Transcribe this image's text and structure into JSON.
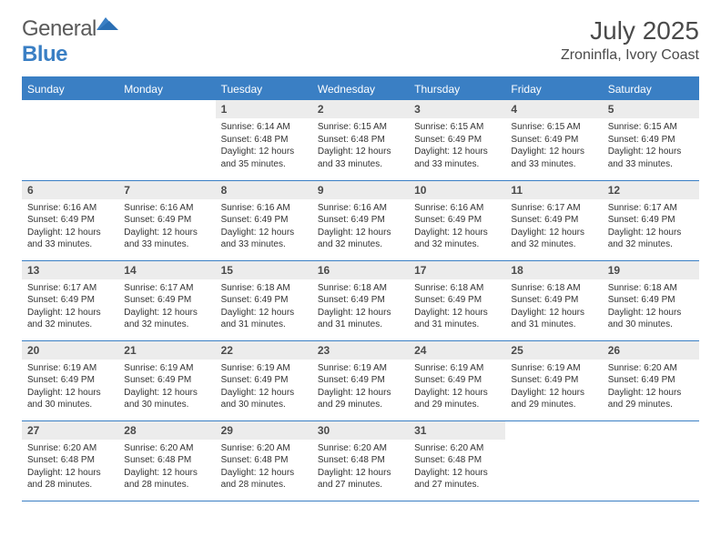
{
  "colors": {
    "accent": "#3a7fc4",
    "header_text": "#ffffff",
    "daynum_bg": "#ececec",
    "text": "#333333",
    "title_text": "#4a4a4a",
    "border": "#3a7fc4",
    "background": "#ffffff"
  },
  "typography": {
    "month_title_fontsize_pt": 21,
    "location_fontsize_pt": 12,
    "weekday_fontsize_pt": 9,
    "daynum_fontsize_pt": 9,
    "celltext_fontsize_pt": 7.5,
    "font_family": "Arial"
  },
  "logo": {
    "text_general": "General",
    "text_blue": "Blue"
  },
  "title": "July 2025",
  "location": "Zroninfla, Ivory Coast",
  "weekdays": [
    "Sunday",
    "Monday",
    "Tuesday",
    "Wednesday",
    "Thursday",
    "Friday",
    "Saturday"
  ],
  "layout": {
    "columns": 7,
    "rows": 5,
    "first_weekday_index": 2,
    "days_in_month": 31
  },
  "days": [
    {
      "n": "1",
      "sr": "6:14 AM",
      "ss": "6:48 PM",
      "dl": "12 hours and 35 minutes."
    },
    {
      "n": "2",
      "sr": "6:15 AM",
      "ss": "6:48 PM",
      "dl": "12 hours and 33 minutes."
    },
    {
      "n": "3",
      "sr": "6:15 AM",
      "ss": "6:49 PM",
      "dl": "12 hours and 33 minutes."
    },
    {
      "n": "4",
      "sr": "6:15 AM",
      "ss": "6:49 PM",
      "dl": "12 hours and 33 minutes."
    },
    {
      "n": "5",
      "sr": "6:15 AM",
      "ss": "6:49 PM",
      "dl": "12 hours and 33 minutes."
    },
    {
      "n": "6",
      "sr": "6:16 AM",
      "ss": "6:49 PM",
      "dl": "12 hours and 33 minutes."
    },
    {
      "n": "7",
      "sr": "6:16 AM",
      "ss": "6:49 PM",
      "dl": "12 hours and 33 minutes."
    },
    {
      "n": "8",
      "sr": "6:16 AM",
      "ss": "6:49 PM",
      "dl": "12 hours and 33 minutes."
    },
    {
      "n": "9",
      "sr": "6:16 AM",
      "ss": "6:49 PM",
      "dl": "12 hours and 32 minutes."
    },
    {
      "n": "10",
      "sr": "6:16 AM",
      "ss": "6:49 PM",
      "dl": "12 hours and 32 minutes."
    },
    {
      "n": "11",
      "sr": "6:17 AM",
      "ss": "6:49 PM",
      "dl": "12 hours and 32 minutes."
    },
    {
      "n": "12",
      "sr": "6:17 AM",
      "ss": "6:49 PM",
      "dl": "12 hours and 32 minutes."
    },
    {
      "n": "13",
      "sr": "6:17 AM",
      "ss": "6:49 PM",
      "dl": "12 hours and 32 minutes."
    },
    {
      "n": "14",
      "sr": "6:17 AM",
      "ss": "6:49 PM",
      "dl": "12 hours and 32 minutes."
    },
    {
      "n": "15",
      "sr": "6:18 AM",
      "ss": "6:49 PM",
      "dl": "12 hours and 31 minutes."
    },
    {
      "n": "16",
      "sr": "6:18 AM",
      "ss": "6:49 PM",
      "dl": "12 hours and 31 minutes."
    },
    {
      "n": "17",
      "sr": "6:18 AM",
      "ss": "6:49 PM",
      "dl": "12 hours and 31 minutes."
    },
    {
      "n": "18",
      "sr": "6:18 AM",
      "ss": "6:49 PM",
      "dl": "12 hours and 31 minutes."
    },
    {
      "n": "19",
      "sr": "6:18 AM",
      "ss": "6:49 PM",
      "dl": "12 hours and 30 minutes."
    },
    {
      "n": "20",
      "sr": "6:19 AM",
      "ss": "6:49 PM",
      "dl": "12 hours and 30 minutes."
    },
    {
      "n": "21",
      "sr": "6:19 AM",
      "ss": "6:49 PM",
      "dl": "12 hours and 30 minutes."
    },
    {
      "n": "22",
      "sr": "6:19 AM",
      "ss": "6:49 PM",
      "dl": "12 hours and 30 minutes."
    },
    {
      "n": "23",
      "sr": "6:19 AM",
      "ss": "6:49 PM",
      "dl": "12 hours and 29 minutes."
    },
    {
      "n": "24",
      "sr": "6:19 AM",
      "ss": "6:49 PM",
      "dl": "12 hours and 29 minutes."
    },
    {
      "n": "25",
      "sr": "6:19 AM",
      "ss": "6:49 PM",
      "dl": "12 hours and 29 minutes."
    },
    {
      "n": "26",
      "sr": "6:20 AM",
      "ss": "6:49 PM",
      "dl": "12 hours and 29 minutes."
    },
    {
      "n": "27",
      "sr": "6:20 AM",
      "ss": "6:48 PM",
      "dl": "12 hours and 28 minutes."
    },
    {
      "n": "28",
      "sr": "6:20 AM",
      "ss": "6:48 PM",
      "dl": "12 hours and 28 minutes."
    },
    {
      "n": "29",
      "sr": "6:20 AM",
      "ss": "6:48 PM",
      "dl": "12 hours and 28 minutes."
    },
    {
      "n": "30",
      "sr": "6:20 AM",
      "ss": "6:48 PM",
      "dl": "12 hours and 27 minutes."
    },
    {
      "n": "31",
      "sr": "6:20 AM",
      "ss": "6:48 PM",
      "dl": "12 hours and 27 minutes."
    }
  ],
  "labels": {
    "sunrise": "Sunrise:",
    "sunset": "Sunset:",
    "daylight": "Daylight:"
  }
}
